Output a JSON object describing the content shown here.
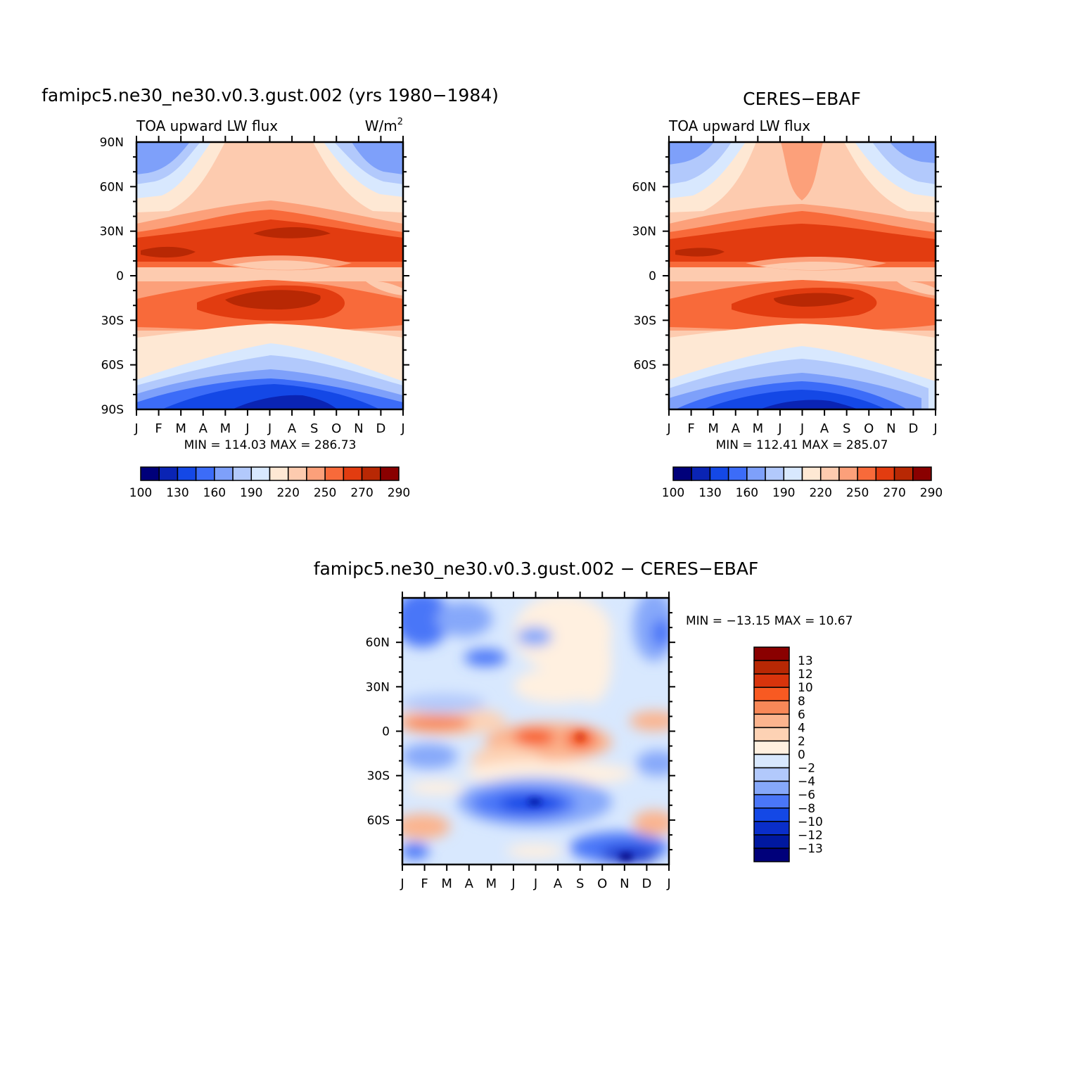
{
  "panels": [
    {
      "title": "famipc5.ne30_ne30.v0.3.gust.002 (yrs 1980−1984)",
      "subtitle_left": "TOA upward LW flux",
      "subtitle_right": "W/m",
      "subtitle_right_sup": "2",
      "minmax": "MIN =  114.03  MAX =  286.73"
    },
    {
      "title": "CERES−EBAF",
      "subtitle_left": "TOA upward LW flux",
      "minmax": "MIN =  112.41  MAX =  285.07"
    },
    {
      "title": "famipc5.ne30_ne30.v0.3.gust.002  −  CERES−EBAF",
      "minmax": "MIN = −13.15  MAX =    10.67"
    }
  ],
  "chart_data": [
    {
      "type": "heatmap",
      "title": "famipc5.ne30_ne30.v0.3.gust.002 (yrs 1980−1984)",
      "variable": "TOA upward LW flux",
      "units": "W/m2",
      "x_ticks": [
        "J",
        "F",
        "M",
        "A",
        "M",
        "J",
        "J",
        "A",
        "S",
        "O",
        "N",
        "D",
        "J"
      ],
      "y_ticks": [
        "90N",
        "60N",
        "30N",
        "0",
        "30S",
        "60S",
        "90S"
      ],
      "min": 114.03,
      "max": 286.73,
      "colorbar_labels": [
        "100",
        "130",
        "160",
        "190",
        "220",
        "250",
        "270",
        "290"
      ],
      "colors": [
        "#00007a",
        "#0a24b4",
        "#1448e6",
        "#3c6cf8",
        "#7ea0fa",
        "#b2c9fc",
        "#d8e8fe",
        "#fee8d4",
        "#fdcbaf",
        "#fca07a",
        "#f86a3a",
        "#e23c10",
        "#b82804",
        "#8a0000"
      ],
      "levels": [
        100,
        115,
        130,
        145,
        160,
        175,
        190,
        205,
        220,
        235,
        250,
        260,
        270,
        280,
        290
      ]
    },
    {
      "type": "heatmap",
      "title": "CERES−EBAF",
      "variable": "TOA upward LW flux",
      "x_ticks": [
        "J",
        "F",
        "M",
        "A",
        "M",
        "J",
        "J",
        "A",
        "S",
        "O",
        "N",
        "D",
        "J"
      ],
      "y_ticks": [
        "60N",
        "30N",
        "0",
        "30S",
        "60S"
      ],
      "min": 112.41,
      "max": 285.07,
      "colorbar_labels": [
        "100",
        "130",
        "160",
        "190",
        "220",
        "250",
        "270",
        "290"
      ],
      "colors": [
        "#00007a",
        "#0a24b4",
        "#1448e6",
        "#3c6cf8",
        "#7ea0fa",
        "#b2c9fc",
        "#d8e8fe",
        "#fee8d4",
        "#fdcbaf",
        "#fca07a",
        "#f86a3a",
        "#e23c10",
        "#b82804",
        "#8a0000"
      ],
      "levels": [
        100,
        115,
        130,
        145,
        160,
        175,
        190,
        205,
        220,
        235,
        250,
        260,
        270,
        280,
        290
      ]
    },
    {
      "type": "heatmap",
      "title": "famipc5.ne30_ne30.v0.3.gust.002  −  CERES−EBAF",
      "x_ticks": [
        "J",
        "F",
        "M",
        "A",
        "M",
        "J",
        "J",
        "A",
        "S",
        "O",
        "N",
        "D",
        "J"
      ],
      "y_ticks": [
        "60N",
        "30N",
        "0",
        "30S",
        "60S"
      ],
      "min": -13.15,
      "max": 10.67,
      "colorbar_labels": [
        "13",
        "12",
        "10",
        "8",
        "6",
        "4",
        "2",
        "0",
        "−2",
        "−4",
        "−6",
        "−8",
        "−10",
        "−12",
        "−13"
      ],
      "colors": [
        "#8a0000",
        "#b82804",
        "#d8340c",
        "#f85a22",
        "#f88858",
        "#fbb48e",
        "#fdd2b4",
        "#fff0e0",
        "#d8e8fe",
        "#b2c9fc",
        "#86a8fa",
        "#4a76f8",
        "#1448e6",
        "#0a2eca",
        "#0018a0",
        "#00007a"
      ]
    }
  ]
}
